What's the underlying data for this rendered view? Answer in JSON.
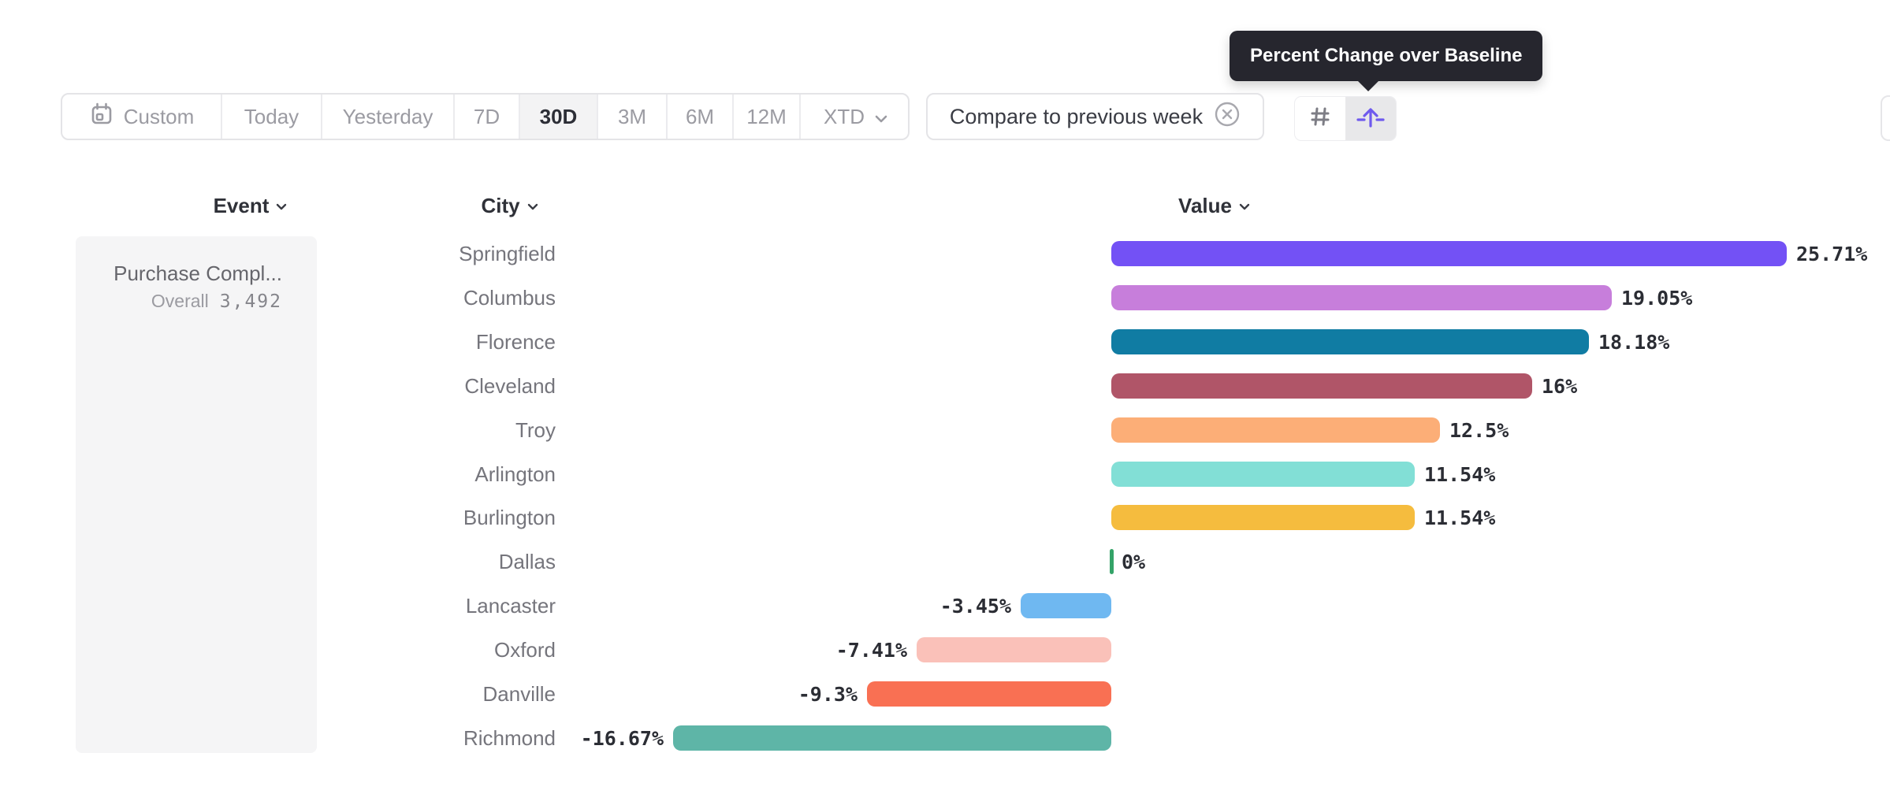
{
  "tooltip": {
    "text": "Percent Change over Baseline"
  },
  "toolbar": {
    "items": [
      {
        "label": "Custom",
        "icon": "calendar-icon",
        "selected": false
      },
      {
        "label": "Today",
        "selected": false
      },
      {
        "label": "Yesterday",
        "selected": false
      },
      {
        "label": "7D",
        "selected": false
      },
      {
        "label": "30D",
        "selected": true
      },
      {
        "label": "3M",
        "selected": false
      },
      {
        "label": "6M",
        "selected": false
      },
      {
        "label": "12M",
        "selected": false
      },
      {
        "label": "XTD",
        "icon": "chevron-down-icon",
        "selected": false
      }
    ]
  },
  "compare_chip": {
    "label": "Compare to previous week",
    "close_icon": "x-circle-icon"
  },
  "view_toggle": {
    "options": [
      {
        "icon": "hash-grid-icon",
        "selected": false
      },
      {
        "icon": "baseline-arrow-icon",
        "selected": true
      }
    ]
  },
  "columns": {
    "event": "Event",
    "city": "City",
    "value": "Value"
  },
  "event_panel": {
    "event_name": "Purchase Compl...",
    "metric_label": "Overall",
    "metric_value": "3,492"
  },
  "chart_data": {
    "type": "bar",
    "orientation": "horizontal",
    "title": "Percent Change over Baseline",
    "unit": "percent",
    "baseline": 0,
    "categories": [
      "Springfield",
      "Columbus",
      "Florence",
      "Cleveland",
      "Troy",
      "Arlington",
      "Burlington",
      "Dallas",
      "Lancaster",
      "Oxford",
      "Danville",
      "Richmond"
    ],
    "values": [
      25.71,
      19.05,
      18.18,
      16,
      12.5,
      11.54,
      11.54,
      0,
      -3.45,
      -7.41,
      -9.3,
      -16.67
    ],
    "labels": [
      "25.71%",
      "19.05%",
      "18.18%",
      "16%",
      "12.5%",
      "11.54%",
      "11.54%",
      "0%",
      "-3.45%",
      "-7.41%",
      "-9.3%",
      "-16.67%"
    ],
    "colors": [
      "#7351f5",
      "#c77edb",
      "#107ca3",
      "#b05568",
      "#fcae77",
      "#82dfd6",
      "#f5bc3e",
      "#34a368",
      "#6fb8f1",
      "#fac1b9",
      "#f97053",
      "#5eb5a7"
    ]
  },
  "colors": {
    "accent_purple": "#6f5aee",
    "tooltip_bg": "#26262e",
    "selected_bg": "#f3f3f4",
    "panel_bg": "#f5f5f6",
    "border": "#e4e4e7",
    "zero_tick_green": "#34a368"
  }
}
